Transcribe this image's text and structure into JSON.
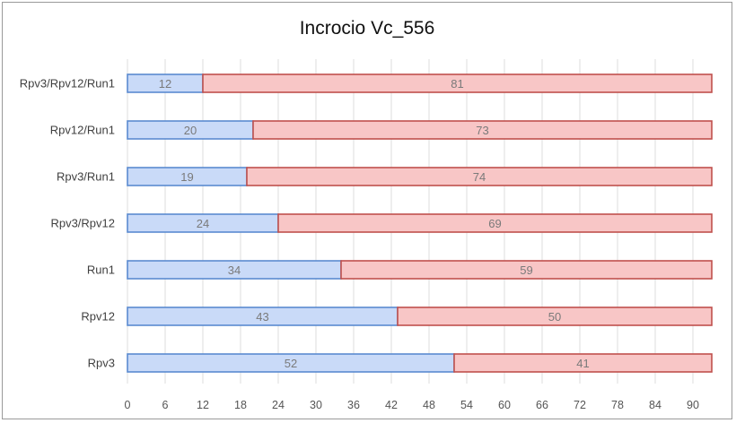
{
  "chart_data": {
    "type": "bar",
    "orientation": "horizontal",
    "stacked": true,
    "title": "Incrocio Vc_556",
    "categories": [
      "Rpv3/Rpv12/Run1",
      "Rpv12/Run1",
      "Rpv3/Run1",
      "Rpv3/Rpv12",
      "Run1",
      "Rpv12",
      "Rpv3"
    ],
    "series": [
      {
        "values": [
          12,
          20,
          19,
          24,
          34,
          43,
          52
        ],
        "color": "#5b8bd0",
        "fill": "#c9daf8"
      },
      {
        "values": [
          81,
          73,
          74,
          69,
          59,
          50,
          41
        ],
        "color": "#c0504d",
        "fill": "#f8c6c6"
      }
    ],
    "xlim": [
      0,
      93
    ],
    "xticks": [
      0,
      6,
      12,
      18,
      24,
      30,
      36,
      42,
      48,
      54,
      60,
      66,
      72,
      78,
      84,
      90
    ],
    "grid": true,
    "legend": "none"
  }
}
